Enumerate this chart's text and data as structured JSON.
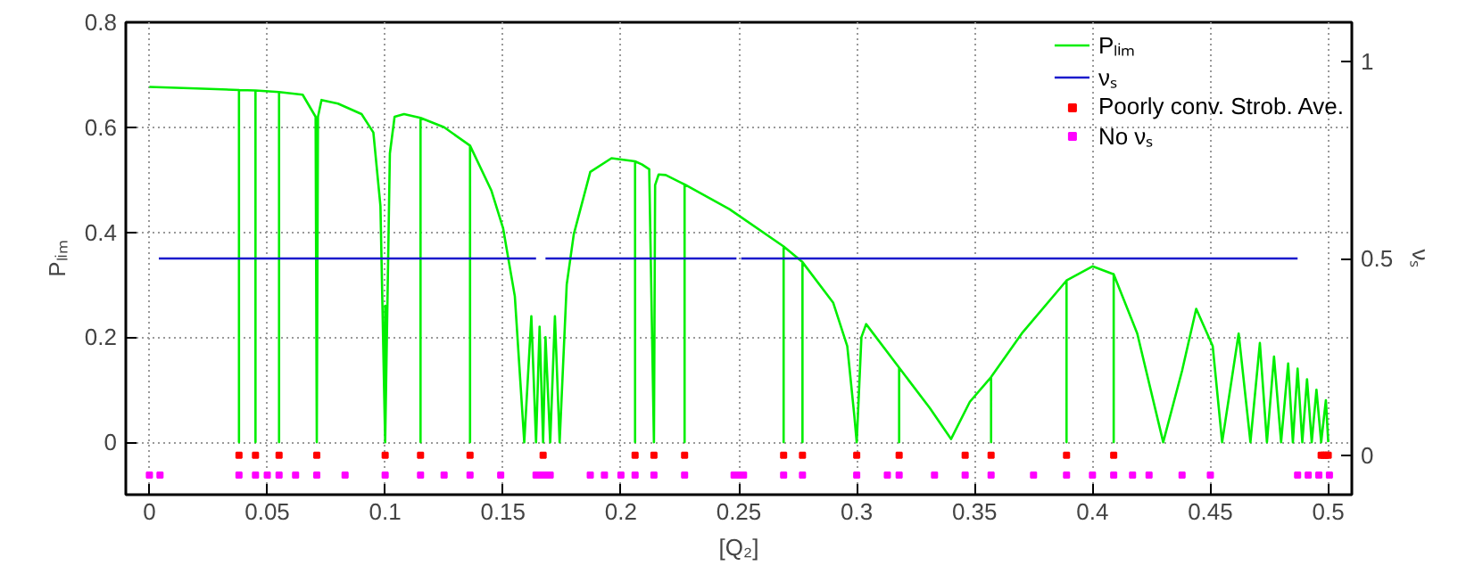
{
  "chart_data": {
    "type": "line",
    "xlabel": "[Q₂]",
    "ylabel": "Pₗᵢₘ",
    "y2label": "νₛ",
    "xlim": [
      -0.01,
      0.51
    ],
    "ylim": [
      -0.1,
      0.8
    ],
    "y2lim": [
      -0.1,
      1.1
    ],
    "xticks": [
      0,
      0.05,
      0.1,
      0.15,
      0.2,
      0.25,
      0.3,
      0.35,
      0.4,
      0.45,
      0.5
    ],
    "yticks": [
      0,
      0.2,
      0.4,
      0.6,
      0.8
    ],
    "y2ticks": [
      0,
      0.5,
      1
    ],
    "grid": true,
    "legend": "top right",
    "series": [
      {
        "name": "Pₗᵢₘ",
        "color": "#00ee00",
        "marker": "none",
        "x": [
          0,
          0.02,
          0.038,
          0.038,
          0.038,
          0.045,
          0.045,
          0.045,
          0.055,
          0.055,
          0.055,
          0.065,
          0.0705,
          0.071,
          0.0715,
          0.073,
          0.08,
          0.09,
          0.095,
          0.098,
          0.1,
          0.1,
          0.1,
          0.102,
          0.104,
          0.108,
          0.115,
          0.115,
          0.115,
          0.125,
          0.136,
          0.136,
          0.136,
          0.145,
          0.15,
          0.155,
          0.159,
          0.162,
          0.164,
          0.1655,
          0.167,
          0.168,
          0.17,
          0.172,
          0.174,
          0.177,
          0.18,
          0.187,
          0.196,
          0.206,
          0.206,
          0.206,
          0.209,
          0.212,
          0.214,
          0.2145,
          0.216,
          0.219,
          0.227,
          0.227,
          0.227,
          0.246,
          0.269,
          0.269,
          0.269,
          0.277,
          0.277,
          0.277,
          0.29,
          0.296,
          0.299,
          0.3,
          0.302,
          0.304,
          0.318,
          0.318,
          0.318,
          0.331,
          0.34,
          0.348,
          0.357,
          0.357,
          0.357,
          0.37,
          0.389,
          0.389,
          0.389,
          0.4,
          0.409,
          0.409,
          0.409,
          0.419,
          0.43,
          0.438,
          0.444,
          0.451,
          0.455,
          0.462,
          0.467,
          0.471,
          0.474,
          0.477,
          0.48,
          0.483,
          0.485,
          0.487,
          0.489,
          0.491,
          0.493,
          0.495,
          0.497,
          0.499,
          0.5
        ],
        "values": [
          0.677,
          0.674,
          0.671,
          0,
          0.671,
          0.67,
          0,
          0.67,
          0.667,
          0,
          0.667,
          0.662,
          0.62,
          0,
          0.62,
          0.652,
          0.645,
          0.625,
          0.59,
          0.45,
          0,
          0.26,
          0,
          0.55,
          0.62,
          0.625,
          0.618,
          0,
          0.618,
          0.6,
          0.565,
          0,
          0.565,
          0.48,
          0.408,
          0.278,
          0,
          0.24,
          0,
          0.22,
          0,
          0.2,
          0,
          0.24,
          0,
          0.3,
          0.396,
          0.515,
          0.541,
          0.535,
          0,
          0.535,
          0.529,
          0.52,
          0,
          0.49,
          0.51,
          0.509,
          0.491,
          0,
          0.491,
          0.444,
          0.373,
          0,
          0.373,
          0.343,
          0,
          0.343,
          0.266,
          0.183,
          0.05,
          0,
          0.2,
          0.225,
          0.142,
          0,
          0.142,
          0.065,
          0.006,
          0.077,
          0.124,
          0,
          0.124,
          0.207,
          0.308,
          0,
          0.308,
          0.335,
          0.32,
          0,
          0.32,
          0.207,
          0,
          0.136,
          0.254,
          0.183,
          0,
          0.207,
          0,
          0.189,
          0,
          0.163,
          0,
          0.15,
          0,
          0.14,
          0,
          0.12,
          0,
          0.1,
          0,
          0.08,
          0
        ]
      },
      {
        "name": "νₛ",
        "axis": "y2",
        "color": "#1a1acc",
        "marker": "none",
        "x": [
          0.004,
          0.164,
          0.166,
          0.168,
          0.249,
          0.25,
          0.251,
          0.487
        ],
        "values": [
          0.5,
          0.5,
          null,
          0.5,
          0.5,
          null,
          0.5,
          0.5
        ]
      },
      {
        "name": "Poorly conv. Strob. Ave.",
        "type": "scatter",
        "axis": "y2",
        "color": "#ff0000",
        "marker": "square",
        "x": [
          0.038,
          0.045,
          0.055,
          0.071,
          0.1,
          0.115,
          0.136,
          0.167,
          0.206,
          0.214,
          0.227,
          0.269,
          0.277,
          0.3,
          0.318,
          0.346,
          0.357,
          0.389,
          0.409,
          0.497,
          0.498,
          0.499,
          0.5
        ],
        "values": [
          0,
          0,
          0,
          0,
          0,
          0,
          0,
          0,
          0,
          0,
          0,
          0,
          0,
          0,
          0,
          0,
          0,
          0,
          0,
          0,
          0,
          0,
          0
        ]
      },
      {
        "name": "No νₛ",
        "type": "scatter",
        "axis": "y2",
        "color": "#ff00ff",
        "marker": "square",
        "x": [
          0,
          0.0045,
          0.038,
          0.045,
          0.05,
          0.055,
          0.062,
          0.071,
          0.083,
          0.1,
          0.115,
          0.125,
          0.136,
          0.149,
          0.164,
          0.166,
          0.168,
          0.17,
          0.187,
          0.193,
          0.2,
          0.206,
          0.214,
          0.227,
          0.248,
          0.25,
          0.252,
          0.269,
          0.277,
          0.3,
          0.313,
          0.318,
          0.333,
          0.346,
          0.357,
          0.375,
          0.389,
          0.4,
          0.409,
          0.417,
          0.424,
          0.438,
          0.45,
          0.487,
          0.4915,
          0.496,
          0.5005
        ],
        "values": [
          -0.05,
          -0.05,
          -0.05,
          -0.05,
          -0.05,
          -0.05,
          -0.05,
          -0.05,
          -0.05,
          -0.05,
          -0.05,
          -0.05,
          -0.05,
          -0.05,
          -0.05,
          -0.05,
          -0.05,
          -0.05,
          -0.05,
          -0.05,
          -0.05,
          -0.05,
          -0.05,
          -0.05,
          -0.05,
          -0.05,
          -0.05,
          -0.05,
          -0.05,
          -0.05,
          -0.05,
          -0.05,
          -0.05,
          -0.05,
          -0.05,
          -0.05,
          -0.05,
          -0.05,
          -0.05,
          -0.05,
          -0.05,
          -0.05,
          -0.05,
          -0.05,
          -0.05,
          -0.05,
          -0.05
        ]
      }
    ]
  }
}
